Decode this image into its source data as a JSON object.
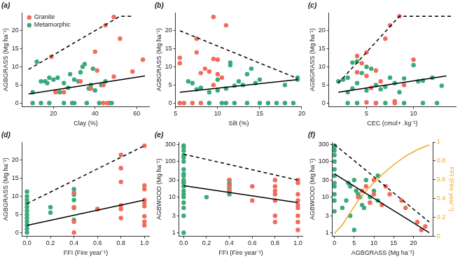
{
  "chart_data": [
    {
      "type": "scatter",
      "title": "(a)",
      "x_label": "Clay (%)",
      "y_label": "AGBGRASS (Mg ha⁻¹)",
      "xlim": [
        5,
        66
      ],
      "xticks": [
        20,
        40,
        60
      ],
      "ylim": [
        -1,
        25
      ],
      "yticks": [
        0,
        5,
        10,
        15,
        20
      ],
      "grid": false,
      "legend": "top-left",
      "series": [
        {
          "name": "Granite",
          "color": "#f26b5b",
          "marker": "circle",
          "x": [
            19,
            21,
            25,
            33,
            38,
            40,
            41,
            44,
            44,
            45,
            46,
            49,
            49,
            52,
            58,
            63
          ],
          "values": [
            12.8,
            3,
            3,
            6,
            4,
            14.2,
            9,
            5,
            0,
            21.5,
            0,
            23.8,
            7.3,
            17.8,
            8.7,
            12
          ]
        },
        {
          "name": "Metamorphic",
          "color": "#3aaa7b",
          "marker": "circle",
          "x": [
            10,
            10,
            12,
            14,
            14,
            16,
            17,
            18,
            18,
            20,
            22,
            23,
            25,
            25,
            27,
            28,
            29,
            30,
            30,
            32,
            33,
            34,
            35,
            36,
            37,
            38,
            39,
            40,
            42,
            43,
            45,
            47,
            48
          ],
          "values": [
            3,
            0,
            11.4,
            6,
            0,
            6,
            5.5,
            7,
            0,
            6.5,
            7,
            3,
            0,
            5.5,
            4.2,
            8,
            0,
            6.5,
            0,
            6,
            8.5,
            10,
            10.8,
            0,
            4,
            5,
            9.5,
            3.5,
            0,
            5,
            6,
            0,
            0
          ]
        },
        {
          "type": "line",
          "line_style": "solid",
          "color": "#000000",
          "x": [
            8,
            64
          ],
          "values": [
            2.5,
            7.5
          ]
        },
        {
          "type": "line",
          "line_style": "dashed",
          "color": "#000000",
          "x": [
            8,
            52,
            58
          ],
          "values": [
            9.3,
            24,
            24
          ]
        }
      ]
    },
    {
      "type": "scatter",
      "title": "(b)",
      "x_label": "Silt (%)",
      "y_label": "AGBGRASS (Mg ha⁻¹)",
      "xlim": [
        5,
        20
      ],
      "xticks": [
        5,
        10,
        15,
        20
      ],
      "ylim": [
        -1,
        25
      ],
      "yticks": [
        0,
        5,
        10,
        15,
        20
      ],
      "grid": false,
      "series": [
        {
          "name": "Granite",
          "color": "#f26b5b",
          "marker": "circle",
          "x": [
            5.5,
            5.5,
            5.5,
            6,
            7,
            7.5,
            7.5,
            8,
            8,
            8.5,
            9,
            9.5,
            9.5,
            9.5,
            10,
            10,
            10.5,
            11
          ],
          "values": [
            12.5,
            11,
            0,
            0,
            0,
            17.8,
            14,
            8.3,
            0,
            9.5,
            8.7,
            23.8,
            5,
            12.2,
            12,
            8,
            7,
            21.5
          ]
        },
        {
          "name": "Metamorphic",
          "color": "#3aaa7b",
          "marker": "circle",
          "x": [
            6.5,
            7,
            7.5,
            8,
            9,
            9,
            10,
            10,
            10.5,
            11,
            11,
            11.5,
            11.5,
            12,
            12,
            12.5,
            13,
            13.5,
            13.5,
            14,
            14.5,
            15,
            15,
            16,
            17,
            18,
            18,
            19,
            19.5,
            19.5
          ],
          "values": [
            6,
            5.5,
            3.8,
            4.2,
            3,
            0,
            3.5,
            6.5,
            0,
            4,
            0,
            10.5,
            11.2,
            4.8,
            0,
            6,
            5,
            8,
            0,
            9.5,
            5.5,
            6.5,
            0,
            0,
            0,
            5,
            0,
            0,
            6.5,
            7
          ]
        },
        {
          "type": "line",
          "line_style": "solid",
          "color": "#000000",
          "x": [
            5.5,
            19.5
          ],
          "values": [
            3,
            6.5
          ]
        },
        {
          "type": "line",
          "line_style": "dashed",
          "color": "#000000",
          "x": [
            5.5,
            19.5
          ],
          "values": [
            20,
            6.8
          ]
        }
      ]
    },
    {
      "type": "scatter",
      "title": "(c)",
      "x_label": "CEC (cmol+ .kg⁻¹)",
      "y_label": "AGBGRASS (Mg ha⁻¹)",
      "xlim": [
        1,
        14.5
      ],
      "xticks": [
        5,
        10
      ],
      "ylim": [
        -1,
        25
      ],
      "yticks": [
        0,
        5,
        10,
        15,
        20
      ],
      "grid": false,
      "series": [
        {
          "name": "Granite",
          "color": "#f26b5b",
          "marker": "circle",
          "x": [
            4,
            4,
            4.5,
            5,
            5,
            5,
            5.5,
            6,
            6,
            6.5,
            7,
            7.5,
            8,
            8,
            8.5,
            9,
            10
          ],
          "values": [
            13,
            8.5,
            11,
            14,
            0.2,
            7.5,
            4.2,
            9,
            0,
            6,
            17.8,
            21.5,
            0,
            0.5,
            24,
            5,
            12
          ]
        },
        {
          "name": "Metamorphic",
          "color": "#3aaa7b",
          "marker": "circle",
          "x": [
            2,
            2.5,
            3,
            3,
            3,
            3.5,
            3.5,
            4,
            4,
            4,
            4.5,
            5,
            5,
            5.5,
            6,
            6,
            6.5,
            7,
            7,
            7.5,
            8,
            8.5,
            9,
            9,
            10,
            10.5,
            11,
            11,
            12,
            12.5,
            13
          ],
          "values": [
            6,
            6.5,
            3,
            7,
            0,
            4,
            11.2,
            11.5,
            5.5,
            0,
            8.3,
            10,
            3.5,
            9.5,
            5,
            0,
            3.8,
            4.5,
            0,
            7,
            5.5,
            3,
            0,
            6.8,
            10.5,
            6,
            0,
            6.2,
            7,
            0,
            4.8
          ]
        },
        {
          "type": "line",
          "line_style": "solid",
          "color": "#000000",
          "x": [
            2,
            13.5
          ],
          "values": [
            3,
            7.5
          ]
        },
        {
          "type": "line",
          "line_style": "dashed",
          "color": "#000000",
          "x": [
            2,
            8.5,
            14
          ],
          "values": [
            5.5,
            24,
            24
          ]
        }
      ]
    },
    {
      "type": "scatter",
      "title": "(d)",
      "x_label": "FFI (Fire year⁻¹)",
      "y_label": "AGBGRASS (Mg ha⁻¹)",
      "xlim": [
        -0.04,
        1.04
      ],
      "xticks": [
        {
          "value": 0,
          "label": "0.0"
        },
        0.2,
        0.4,
        0.6,
        0.8,
        {
          "value": 1,
          "label": "1.0"
        }
      ],
      "ylim": [
        -1,
        25
      ],
      "yticks": [
        0,
        5,
        10,
        15,
        20
      ],
      "grid": false,
      "series": [
        {
          "name": "Granite",
          "color": "#f26b5b",
          "marker": "circle",
          "x": [
            0.4,
            0.4,
            0.4,
            0.4,
            0.6,
            0.8,
            0.8,
            0.8,
            0.8,
            0.8,
            0.8,
            1,
            1,
            1,
            1,
            1,
            1,
            1,
            1,
            1
          ],
          "values": [
            0,
            3,
            7,
            11,
            6.5,
            4,
            6.5,
            7.5,
            14,
            17.8,
            21.5,
            2,
            3,
            4.5,
            7.3,
            8.3,
            9,
            12,
            13,
            24
          ]
        },
        {
          "name": "Metamorphic",
          "color": "#3aaa7b",
          "marker": "circle",
          "x": [
            0,
            0,
            0,
            0,
            0,
            0,
            0,
            0,
            0,
            0,
            0,
            0,
            0.2,
            0.2,
            0.4,
            0.4,
            0.4,
            0.4,
            0.4,
            0.6
          ],
          "values": [
            0,
            1,
            2,
            3,
            4,
            5,
            6,
            7,
            8,
            9,
            10,
            11.3,
            5.5,
            7,
            3.5,
            6.8,
            9,
            10.5,
            12,
            6.5
          ]
        },
        {
          "type": "line",
          "line_style": "solid",
          "color": "#000000",
          "x": [
            0,
            1
          ],
          "values": [
            2,
            9
          ]
        },
        {
          "type": "line",
          "line_style": "dashed",
          "color": "#000000",
          "x": [
            0,
            1
          ],
          "values": [
            8,
            24
          ]
        }
      ]
    },
    {
      "type": "scatter",
      "title": "(e)",
      "x_label": "FFI (Fire year⁻¹)",
      "y_label": "AGBWOOD (Mg ha⁻¹)",
      "log": "y",
      "xlim": [
        -0.04,
        1.04
      ],
      "xticks": [
        {
          "value": 0,
          "label": "0.0"
        },
        0.2,
        0.4,
        0.6,
        0.8,
        {
          "value": 1,
          "label": "1.0"
        }
      ],
      "ylim": [
        0.8,
        350
      ],
      "yticks": [
        1,
        3,
        10,
        30,
        100,
        300
      ],
      "grid": false,
      "series": [
        {
          "name": "Granite",
          "color": "#f26b5b",
          "marker": "circle",
          "x": [
            0.4,
            0.4,
            0.4,
            0.6,
            0.6,
            0.8,
            0.8,
            0.8,
            0.8,
            0.8,
            0.8,
            0.8,
            1,
            1,
            1,
            1,
            1,
            1,
            1,
            1,
            1
          ],
          "values": [
            30,
            20,
            15,
            20,
            8,
            30,
            20,
            15,
            12,
            8,
            3,
            2,
            30,
            25,
            12,
            8,
            6,
            5,
            3,
            2,
            1.2
          ]
        },
        {
          "name": "Metamorphic",
          "color": "#3aaa7b",
          "marker": "circle",
          "x": [
            0,
            0,
            0,
            0,
            0,
            0,
            0,
            0,
            0,
            0,
            0,
            0,
            0,
            0,
            0,
            0,
            0,
            0,
            0,
            0,
            0.2,
            0.4,
            0.4,
            0.4,
            0.4,
            0.4,
            0.4
          ],
          "values": [
            280,
            250,
            200,
            150,
            130,
            100,
            60,
            45,
            40,
            30,
            27,
            25,
            20,
            15,
            12,
            10,
            7,
            5,
            3,
            1,
            10,
            30,
            25,
            22,
            18,
            15,
            12
          ]
        },
        {
          "type": "line",
          "line_style": "solid",
          "color": "#000000",
          "x": [
            0,
            1
          ],
          "values": [
            21,
            7
          ]
        },
        {
          "type": "line",
          "line_style": "dashed",
          "color": "#000000",
          "x": [
            0,
            1
          ],
          "values": [
            160,
            30
          ]
        }
      ]
    },
    {
      "type": "scatter",
      "title": "(f)",
      "x_label": "AGBGRASS (Mg ha⁻¹)",
      "y_label": "AGBWOOD (Mg ha⁻¹)",
      "y2_label": "FFI (Fire year⁻¹)",
      "log": "y",
      "xlim": [
        -0.5,
        25
      ],
      "xticks": [
        0,
        5,
        10,
        15,
        20
      ],
      "ylim": [
        0.8,
        350
      ],
      "yticks": [
        1,
        3,
        10,
        30,
        100,
        300
      ],
      "y2lim": [
        0,
        1
      ],
      "y2ticks": [
        0,
        0.2,
        0.4,
        0.6,
        0.8,
        1
      ],
      "grid": false,
      "series": [
        {
          "name": "Granite",
          "color": "#f26b5b",
          "marker": "circle",
          "x": [
            6,
            7,
            8,
            9,
            10,
            10,
            12,
            13,
            14,
            17,
            18,
            21,
            22,
            23
          ],
          "values": [
            10,
            15,
            20,
            7,
            30,
            12,
            6,
            20,
            12,
            8,
            5,
            2,
            1.2,
            1.5
          ]
        },
        {
          "name": "Metamorphic",
          "color": "#3aaa7b",
          "marker": "circle",
          "x": [
            0,
            0,
            0,
            0,
            0,
            0,
            0,
            0,
            0,
            0,
            0,
            0,
            2,
            3,
            3.5,
            4,
            4,
            5,
            5,
            5.5,
            6,
            6.5,
            7,
            7.5,
            8,
            9,
            10,
            11,
            11
          ],
          "values": [
            280,
            250,
            200,
            150,
            100,
            60,
            40,
            25,
            20,
            12,
            8,
            4,
            5,
            8,
            25,
            20,
            3,
            30,
            1.2,
            15,
            12,
            10,
            6,
            5,
            30,
            10,
            15,
            40,
            8
          ]
        },
        {
          "type": "line",
          "line_style": "solid",
          "color": "#000000",
          "x": [
            0,
            24
          ],
          "values": [
            45,
            1
          ]
        },
        {
          "type": "line",
          "line_style": "dashed",
          "color": "#000000",
          "x": [
            0,
            24
          ],
          "values": [
            300,
            2
          ]
        },
        {
          "type": "line",
          "line_style": "solid",
          "color": "#f5a623",
          "axis": "y2",
          "x": [
            0,
            2,
            4,
            6,
            8,
            10,
            12,
            15,
            18,
            21,
            24
          ],
          "values": [
            0.03,
            0.12,
            0.25,
            0.38,
            0.48,
            0.57,
            0.65,
            0.76,
            0.85,
            0.92,
            0.97
          ]
        }
      ]
    }
  ]
}
